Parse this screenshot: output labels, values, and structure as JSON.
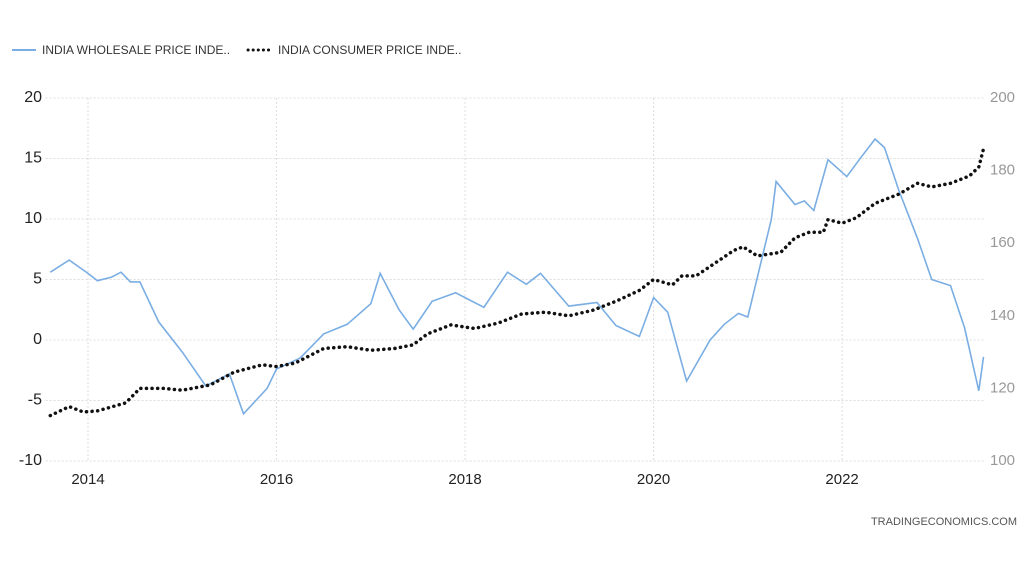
{
  "chart_data": {
    "type": "line",
    "source": "TRADINGECONOMICS.COM",
    "xlim": [
      2013.55,
      2023.5
    ],
    "xticks": [
      2014,
      2016,
      2018,
      2020,
      2022
    ],
    "ylim": [
      -10,
      20
    ],
    "yticks": [
      -10,
      -5,
      0,
      5,
      10,
      15,
      20
    ],
    "y2lim": [
      100,
      200
    ],
    "y2ticks": [
      100,
      120,
      140,
      160,
      180,
      200
    ],
    "grid": true,
    "legend": "top-left",
    "series": [
      {
        "name": "INDIA WHOLESALE PRICE INDE..",
        "color": "#7aaee3",
        "style": "solid",
        "x": [
          2013.6,
          2013.8,
          2014.0,
          2014.1,
          2014.25,
          2014.35,
          2014.45,
          2014.55,
          2014.75,
          2015.0,
          2015.25,
          2015.5,
          2015.65,
          2015.9,
          2016.0,
          2016.25,
          2016.5,
          2016.75,
          2017.0,
          2017.1,
          2017.3,
          2017.45,
          2017.65,
          2017.9,
          2018.2,
          2018.45,
          2018.65,
          2018.8,
          2019.1,
          2019.4,
          2019.6,
          2019.85,
          2020.0,
          2020.15,
          2020.35,
          2020.6,
          2020.75,
          2020.9,
          2021.0,
          2021.25,
          2021.3,
          2021.5,
          2021.6,
          2021.7,
          2021.85,
          2022.05,
          2022.2,
          2022.35,
          2022.45,
          2022.6,
          2022.8,
          2022.95,
          2023.15,
          2023.3,
          2023.45,
          2023.5
        ],
        "values": [
          5.6,
          6.6,
          5.5,
          4.9,
          5.2,
          5.6,
          4.8,
          4.8,
          1.5,
          -1.0,
          -3.8,
          -2.8,
          -6.1,
          -4.0,
          -2.4,
          -1.5,
          0.5,
          1.3,
          3.0,
          5.5,
          2.5,
          0.9,
          3.2,
          3.9,
          2.7,
          5.6,
          4.6,
          5.5,
          2.8,
          3.1,
          1.2,
          0.3,
          3.5,
          2.3,
          -3.4,
          0.0,
          1.3,
          2.2,
          1.9,
          10.0,
          13.1,
          11.2,
          11.5,
          10.7,
          14.9,
          13.5,
          15.1,
          16.6,
          15.9,
          12.4,
          8.4,
          5.0,
          4.5,
          1.0,
          -4.2,
          -1.4
        ]
      },
      {
        "name": "INDIA CONSUMER PRICE INDE..",
        "color": "#111111",
        "style": "dotted",
        "axis": "y2",
        "x": [
          2013.6,
          2013.8,
          2013.95,
          2014.1,
          2014.4,
          2014.55,
          2014.8,
          2015.0,
          2015.3,
          2015.55,
          2015.85,
          2016.0,
          2016.2,
          2016.5,
          2016.75,
          2017.0,
          2017.25,
          2017.45,
          2017.6,
          2017.85,
          2018.1,
          2018.35,
          2018.6,
          2018.85,
          2019.1,
          2019.35,
          2019.6,
          2019.85,
          2020.0,
          2020.2,
          2020.3,
          2020.45,
          2020.65,
          2020.85,
          2020.95,
          2021.1,
          2021.35,
          2021.5,
          2021.65,
          2021.8,
          2021.85,
          2022.0,
          2022.15,
          2022.35,
          2022.6,
          2022.8,
          2022.95,
          2023.15,
          2023.35,
          2023.45,
          2023.5
        ],
        "values": [
          112.5,
          115,
          113.5,
          113.8,
          116,
          120,
          120,
          119.5,
          121,
          124.5,
          126.5,
          126,
          127,
          131,
          131.5,
          130.5,
          131,
          132,
          135,
          137.5,
          136.5,
          138,
          140.5,
          141,
          140,
          141.5,
          144,
          147,
          150,
          148.5,
          151,
          151,
          154.5,
          158,
          159,
          156.5,
          157.5,
          161.5,
          163,
          163,
          166.5,
          165.5,
          167,
          171,
          173.5,
          176.5,
          175.5,
          176.5,
          178.5,
          181,
          186
        ]
      }
    ]
  }
}
